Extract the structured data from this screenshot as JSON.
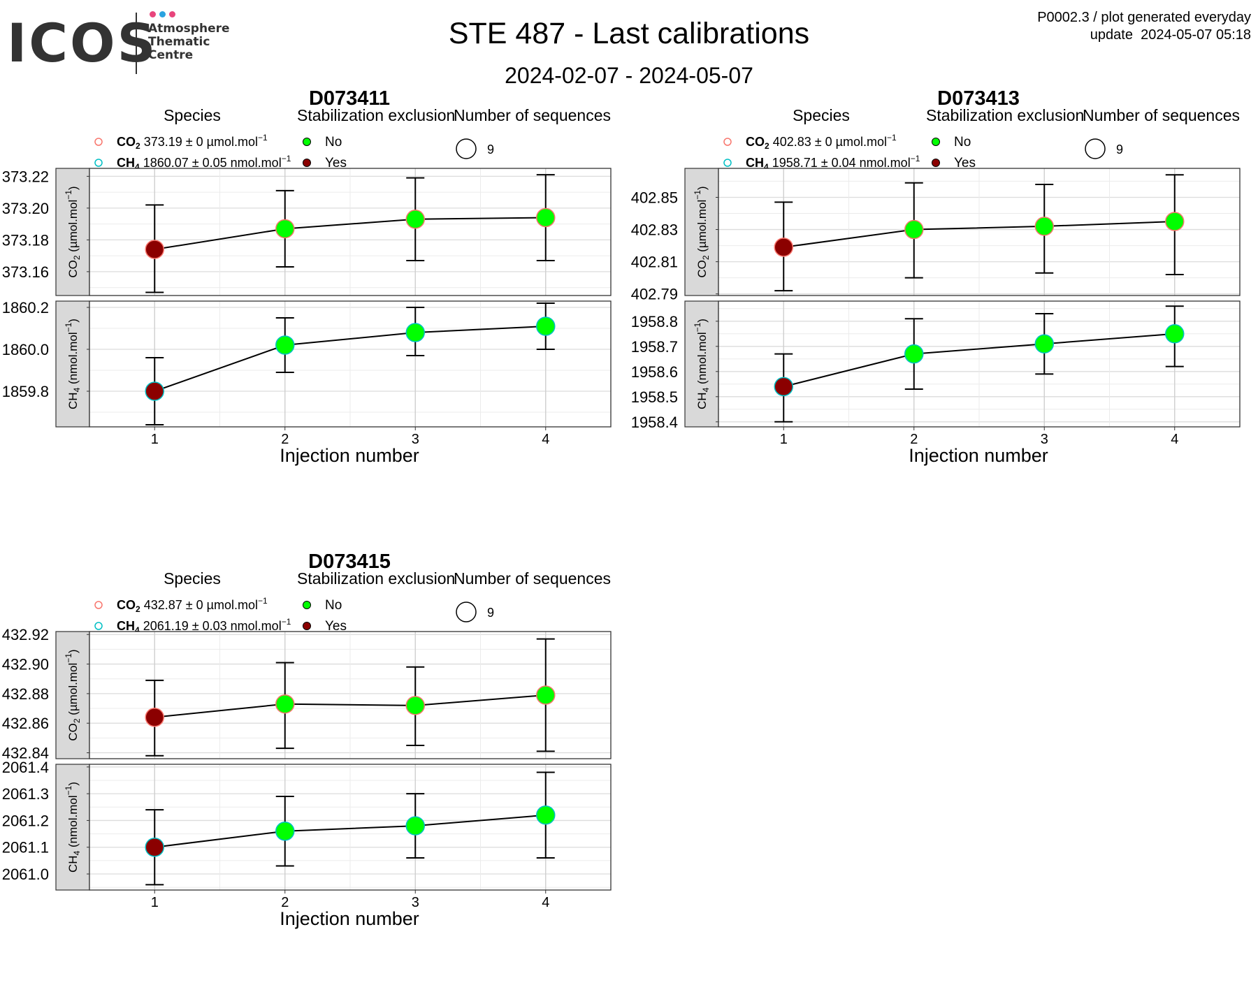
{
  "header": {
    "logo_word": "ICOS",
    "logo_lines": [
      "Atmosphere",
      "Thematic",
      "Centre"
    ],
    "logo_dot_colors": [
      "#e8457c",
      "#2ba3e0",
      "#e8457c"
    ],
    "title": "STE 487 - Last calibrations",
    "subtitle": "2024-02-07 - 2024-05-07",
    "corner_line1": "P0002.3 / plot generated everyday",
    "corner_line2": "update  2024-05-07 05:18"
  },
  "colors": {
    "stab_no": "#00ff00",
    "stab_yes": "#8b0000",
    "species_co2": "#f8766d",
    "species_ch4": "#00bfc4",
    "strip_bg": "#d9d9d9"
  },
  "legend_titles": {
    "species": "Species",
    "stab": "Stabilization exclusion",
    "nseq": "Number of sequences"
  },
  "legend_stab_labels": [
    "No",
    "Yes"
  ],
  "chart_data": [
    {
      "type": "scatter",
      "title": "D073411",
      "xlabel": "Injection number",
      "x": [
        1,
        2,
        3,
        4
      ],
      "x_ticks": [
        "1",
        "2",
        "3",
        "4"
      ],
      "n_sequences": "9",
      "legend_species": [
        {
          "name": "CO2",
          "sub": "2",
          "text": "373.19 ± 0 µmol.mol",
          "sup": "−1"
        },
        {
          "name": "CH4",
          "sub": "4",
          "text": "1860.07 ± 0.05 nmol.mol",
          "sup": "−1"
        }
      ],
      "facets": [
        {
          "species": "CO2",
          "strip_label": "CO",
          "strip_sub": "2",
          "strip_unit": "(µmol.mol",
          "strip_sup": "−1",
          "ylim": [
            373.145,
            373.225
          ],
          "y_ticks": [
            "373.16",
            "373.18",
            "373.20",
            "373.22"
          ],
          "y_tick_values": [
            373.16,
            373.18,
            373.2,
            373.22
          ],
          "values": [
            373.174,
            373.187,
            373.193,
            373.194
          ],
          "error_low": [
            373.147,
            373.163,
            373.167,
            373.167
          ],
          "error_high": [
            373.202,
            373.211,
            373.219,
            373.221
          ],
          "stabilization_excluded": [
            "Yes",
            "No",
            "No",
            "No"
          ]
        },
        {
          "species": "CH4",
          "strip_label": "CH",
          "strip_sub": "4",
          "strip_unit": "(nmol.mol",
          "strip_sup": "−1",
          "ylim": [
            1859.63,
            1860.23
          ],
          "y_ticks": [
            "1859.8",
            "1860.0",
            "1860.2"
          ],
          "y_tick_values": [
            1859.8,
            1860.0,
            1860.2
          ],
          "values": [
            1859.8,
            1860.02,
            1860.08,
            1860.11
          ],
          "error_low": [
            1859.64,
            1859.89,
            1859.97,
            1860.0
          ],
          "error_high": [
            1859.96,
            1860.15,
            1860.2,
            1860.22
          ],
          "stabilization_excluded": [
            "Yes",
            "No",
            "No",
            "No"
          ]
        }
      ]
    },
    {
      "type": "scatter",
      "title": "D073413",
      "xlabel": "Injection number",
      "x": [
        1,
        2,
        3,
        4
      ],
      "x_ticks": [
        "1",
        "2",
        "3",
        "4"
      ],
      "n_sequences": "9",
      "legend_species": [
        {
          "name": "CO2",
          "sub": "2",
          "text": "402.83 ± 0 µmol.mol",
          "sup": "−1"
        },
        {
          "name": "CH4",
          "sub": "4",
          "text": "1958.71 ± 0.04 nmol.mol",
          "sup": "−1"
        }
      ],
      "facets": [
        {
          "species": "CO2",
          "strip_label": "CO",
          "strip_sub": "2",
          "strip_unit": "(µmol.mol",
          "strip_sup": "−1",
          "ylim": [
            402.789,
            402.868
          ],
          "y_ticks": [
            "402.79",
            "402.81",
            "402.83",
            "402.85"
          ],
          "y_tick_values": [
            402.79,
            402.81,
            402.83,
            402.85
          ],
          "values": [
            402.819,
            402.83,
            402.832,
            402.835
          ],
          "error_low": [
            402.792,
            402.8,
            402.803,
            402.802
          ],
          "error_high": [
            402.847,
            402.859,
            402.858,
            402.864
          ],
          "stabilization_excluded": [
            "Yes",
            "No",
            "No",
            "No"
          ]
        },
        {
          "species": "CH4",
          "strip_label": "CH",
          "strip_sub": "4",
          "strip_unit": "(nmol.mol",
          "strip_sup": "−1",
          "ylim": [
            1958.38,
            1958.88
          ],
          "y_ticks": [
            "1958.4",
            "1958.5",
            "1958.6",
            "1958.7",
            "1958.8"
          ],
          "y_tick_values": [
            1958.4,
            1958.5,
            1958.6,
            1958.7,
            1958.8
          ],
          "values": [
            1958.54,
            1958.67,
            1958.71,
            1958.75
          ],
          "error_low": [
            1958.4,
            1958.53,
            1958.59,
            1958.62
          ],
          "error_high": [
            1958.67,
            1958.81,
            1958.83,
            1958.86
          ],
          "stabilization_excluded": [
            "Yes",
            "No",
            "No",
            "No"
          ]
        }
      ]
    },
    {
      "type": "scatter",
      "title": "D073415",
      "xlabel": "Injection number",
      "x": [
        1,
        2,
        3,
        4
      ],
      "x_ticks": [
        "1",
        "2",
        "3",
        "4"
      ],
      "n_sequences": "9",
      "legend_species": [
        {
          "name": "CO2",
          "sub": "2",
          "text": "432.87 ± 0 µmol.mol",
          "sup": "−1"
        },
        {
          "name": "CH4",
          "sub": "4",
          "text": "2061.19 ± 0.03 nmol.mol",
          "sup": "−1"
        }
      ],
      "facets": [
        {
          "species": "CO2",
          "strip_label": "CO",
          "strip_sub": "2",
          "strip_unit": "(µmol.mol",
          "strip_sup": "−1",
          "ylim": [
            432.836,
            432.922
          ],
          "y_ticks": [
            "432.84",
            "432.86",
            "432.88",
            "432.90",
            "432.92"
          ],
          "y_tick_values": [
            432.84,
            432.86,
            432.88,
            432.9,
            432.92
          ],
          "values": [
            432.864,
            432.873,
            432.872,
            432.879
          ],
          "error_low": [
            432.838,
            432.843,
            432.845,
            432.841
          ],
          "error_high": [
            432.889,
            432.901,
            432.898,
            432.917
          ],
          "stabilization_excluded": [
            "Yes",
            "No",
            "No",
            "No"
          ]
        },
        {
          "species": "CH4",
          "strip_label": "CH",
          "strip_sub": "4",
          "strip_unit": "(nmol.mol",
          "strip_sup": "−1",
          "ylim": [
            2060.94,
            2061.41
          ],
          "y_ticks": [
            "2061.0",
            "2061.1",
            "2061.2",
            "2061.3",
            "2061.4"
          ],
          "y_tick_values": [
            2061.0,
            2061.1,
            2061.2,
            2061.3,
            2061.4
          ],
          "values": [
            2061.1,
            2061.16,
            2061.18,
            2061.22
          ],
          "error_low": [
            2060.96,
            2061.03,
            2061.06,
            2061.06
          ],
          "error_high": [
            2061.24,
            2061.29,
            2061.3,
            2061.38
          ],
          "stabilization_excluded": [
            "Yes",
            "No",
            "No",
            "No"
          ]
        }
      ]
    }
  ]
}
